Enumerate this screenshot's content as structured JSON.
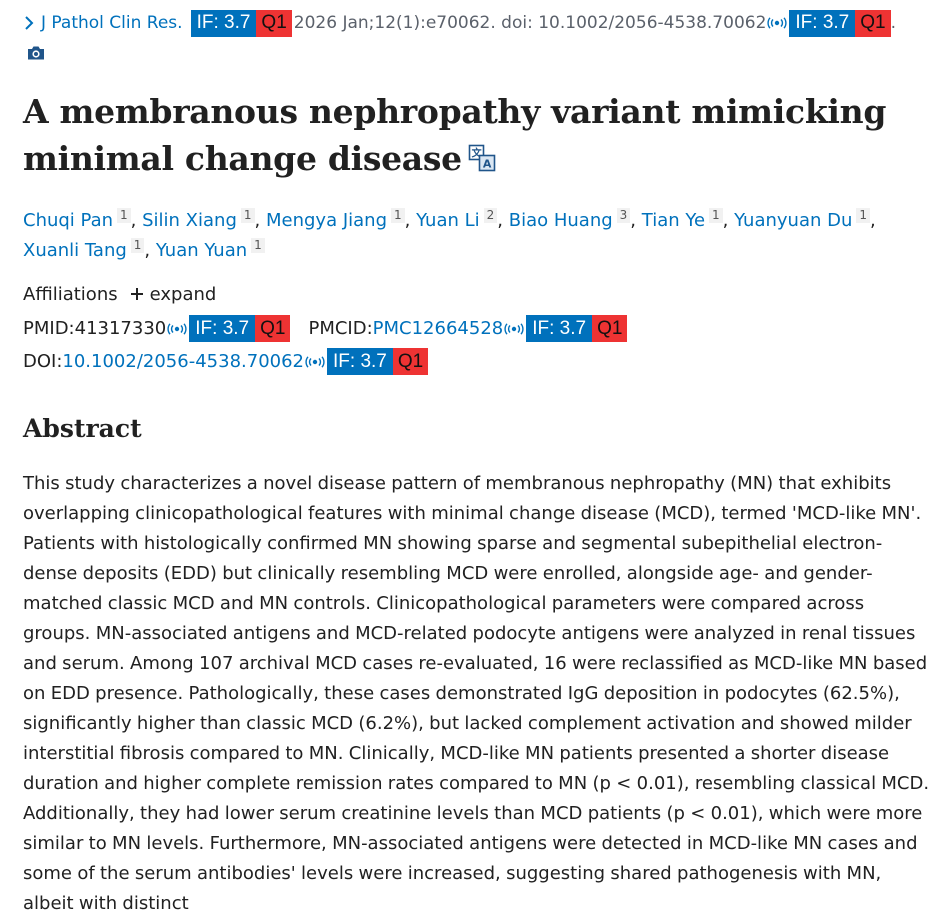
{
  "citation": {
    "journal": "J Pathol Clin Res.",
    "details": "2026 Jan;12(1):e70062. doi: 10.1002/2056-4538.70062",
    "badge_if": "IF: 3.7",
    "badge_q": "Q1",
    "end_dot": "."
  },
  "title": "A membranous nephropathy variant mimicking minimal change disease",
  "authors": [
    {
      "name": "Chuqi Pan",
      "aff": "1"
    },
    {
      "name": "Silin Xiang",
      "aff": "1"
    },
    {
      "name": "Mengya Jiang",
      "aff": "1"
    },
    {
      "name": "Yuan Li",
      "aff": "2"
    },
    {
      "name": "Biao Huang",
      "aff": "3"
    },
    {
      "name": "Tian Ye",
      "aff": "1"
    },
    {
      "name": "Yuanyuan Du",
      "aff": "1"
    },
    {
      "name": "Xuanli Tang",
      "aff": "1"
    },
    {
      "name": "Yuan Yuan",
      "aff": "1"
    }
  ],
  "affiliations": {
    "label": "Affiliations",
    "toggle": "expand"
  },
  "ids": {
    "pmid_label": "PMID: ",
    "pmid": "41317330",
    "pmcid_label": "PMCID: ",
    "pmcid": "PMC12664528",
    "doi_label": "DOI: ",
    "doi": "10.1002/2056-4538.70062"
  },
  "badge": {
    "if": "IF: 3.7",
    "q": "Q1"
  },
  "abstract": {
    "heading": "Abstract",
    "text": "This study characterizes a novel disease pattern of membranous nephropathy (MN) that exhibits overlapping clinicopathological features with minimal change disease (MCD), termed 'MCD-like MN'. Patients with histologically confirmed MN showing sparse and segmental subepithelial electron-dense deposits (EDD) but clinically resembling MCD were enrolled, alongside age- and gender-matched classic MCD and MN controls. Clinicopathological parameters were compared across groups. MN-associated antigens and MCD-related podocyte antigens were analyzed in renal tissues and serum. Among 107 archival MCD cases re-evaluated, 16 were reclassified as MCD-like MN based on EDD presence. Pathologically, these cases demonstrated IgG deposition in podocytes (62.5%), significantly higher than classic MCD (6.2%), but lacked complement activation and showed milder interstitial fibrosis compared to MN. Clinically, MCD-like MN patients presented a shorter disease duration and higher complete remission rates compared to MN (p < 0.01), resembling classical MCD. Additionally, they had lower serum creatinine levels than MCD patients (p < 0.01), which were more similar to MN levels. Furthermore, MN-associated antigens were detected in MCD-like MN cases and some of the serum antibodies' levels were increased, suggesting shared pathogenesis with MN, albeit with distinct"
  },
  "colors": {
    "link": "#0071bc",
    "badge_if": "#0071bc",
    "badge_q": "#ee3333"
  },
  "icons": [
    "chevron-right-icon",
    "broadcast-icon",
    "camera-icon",
    "translate-icon",
    "plus-icon"
  ]
}
